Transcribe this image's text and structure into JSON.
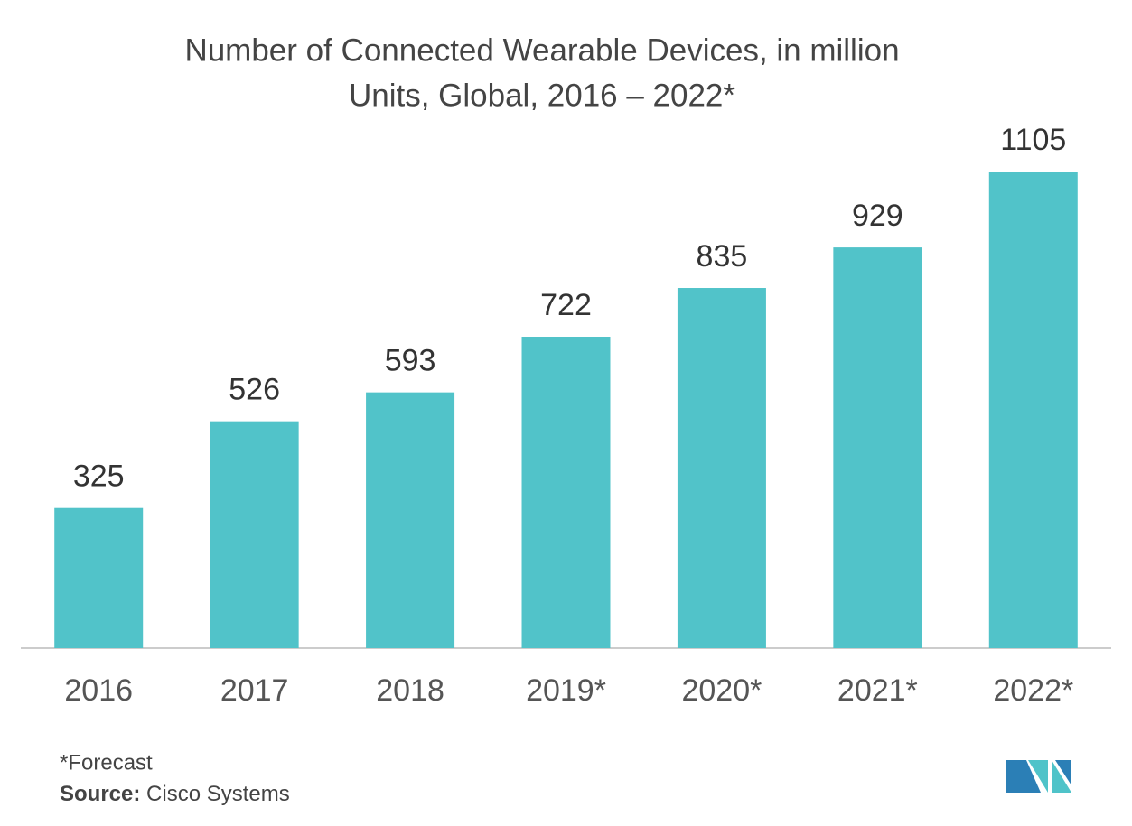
{
  "chart_data": {
    "type": "bar",
    "title": [
      "Number of Connected Wearable Devices, in million",
      "Units, Global, 2016 – 2022*"
    ],
    "categories": [
      "2016",
      "2017",
      "2018",
      "2019*",
      "2020*",
      "2021*",
      "2022*"
    ],
    "values": [
      325,
      526,
      593,
      722,
      835,
      929,
      1105
    ],
    "color": "#51c3c9",
    "footnote": "*Forecast",
    "source_label": "Source:",
    "source": "Cisco Systems"
  }
}
